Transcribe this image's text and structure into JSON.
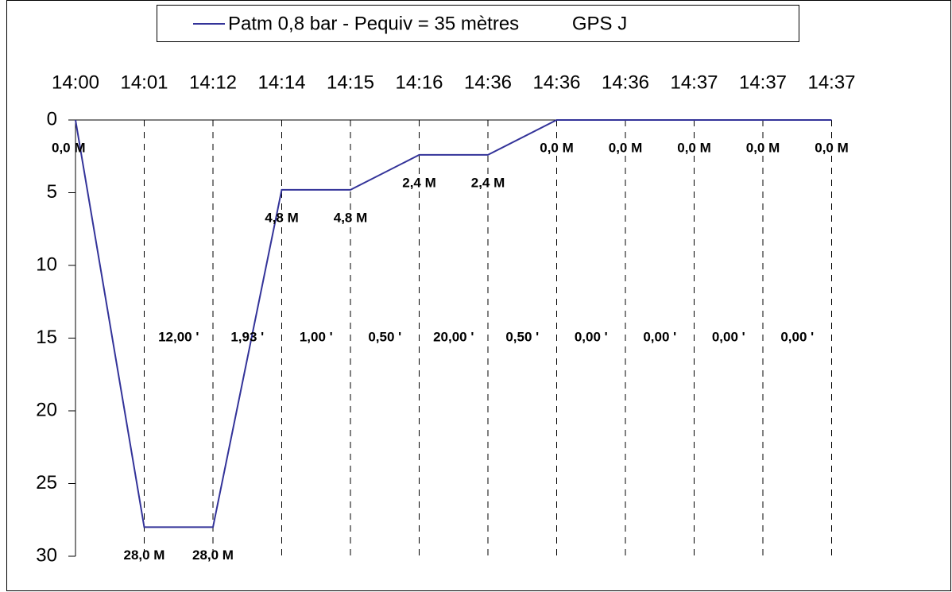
{
  "chart_data": {
    "type": "line",
    "categories": [
      "14:00",
      "14:01",
      "14:12",
      "14:14",
      "14:15",
      "14:16",
      "14:36",
      "14:36",
      "14:36",
      "14:37",
      "14:37",
      "14:37"
    ],
    "series": [
      {
        "name": "Patm 0,8 bar - Pequiv = 35 mètres          GPS J",
        "color": "#333399",
        "values": [
          0,
          28,
          28,
          4.8,
          4.8,
          2.4,
          2.4,
          0,
          0,
          0,
          0,
          0
        ],
        "value_labels": [
          "0,0 M",
          "28,0 M",
          "28,0 M",
          "4,8 M",
          "4,8 M",
          "2,4 M",
          "2,4 M",
          "0,0 M",
          "0,0 M",
          "0,0 M",
          "0,0 M",
          "0,0 M"
        ]
      }
    ],
    "segment_labels": [
      "12,00 '",
      "1,93 '",
      "1,00 '",
      "0,50 '",
      "20,00 '",
      "0,50 '",
      "0,00 '",
      "0,00 '",
      "0,00 '",
      "0,00 '"
    ],
    "ylim": [
      0,
      30
    ],
    "yticks": [
      0,
      5,
      10,
      15,
      20,
      25,
      30
    ],
    "y_inverted": true,
    "grid": true
  }
}
